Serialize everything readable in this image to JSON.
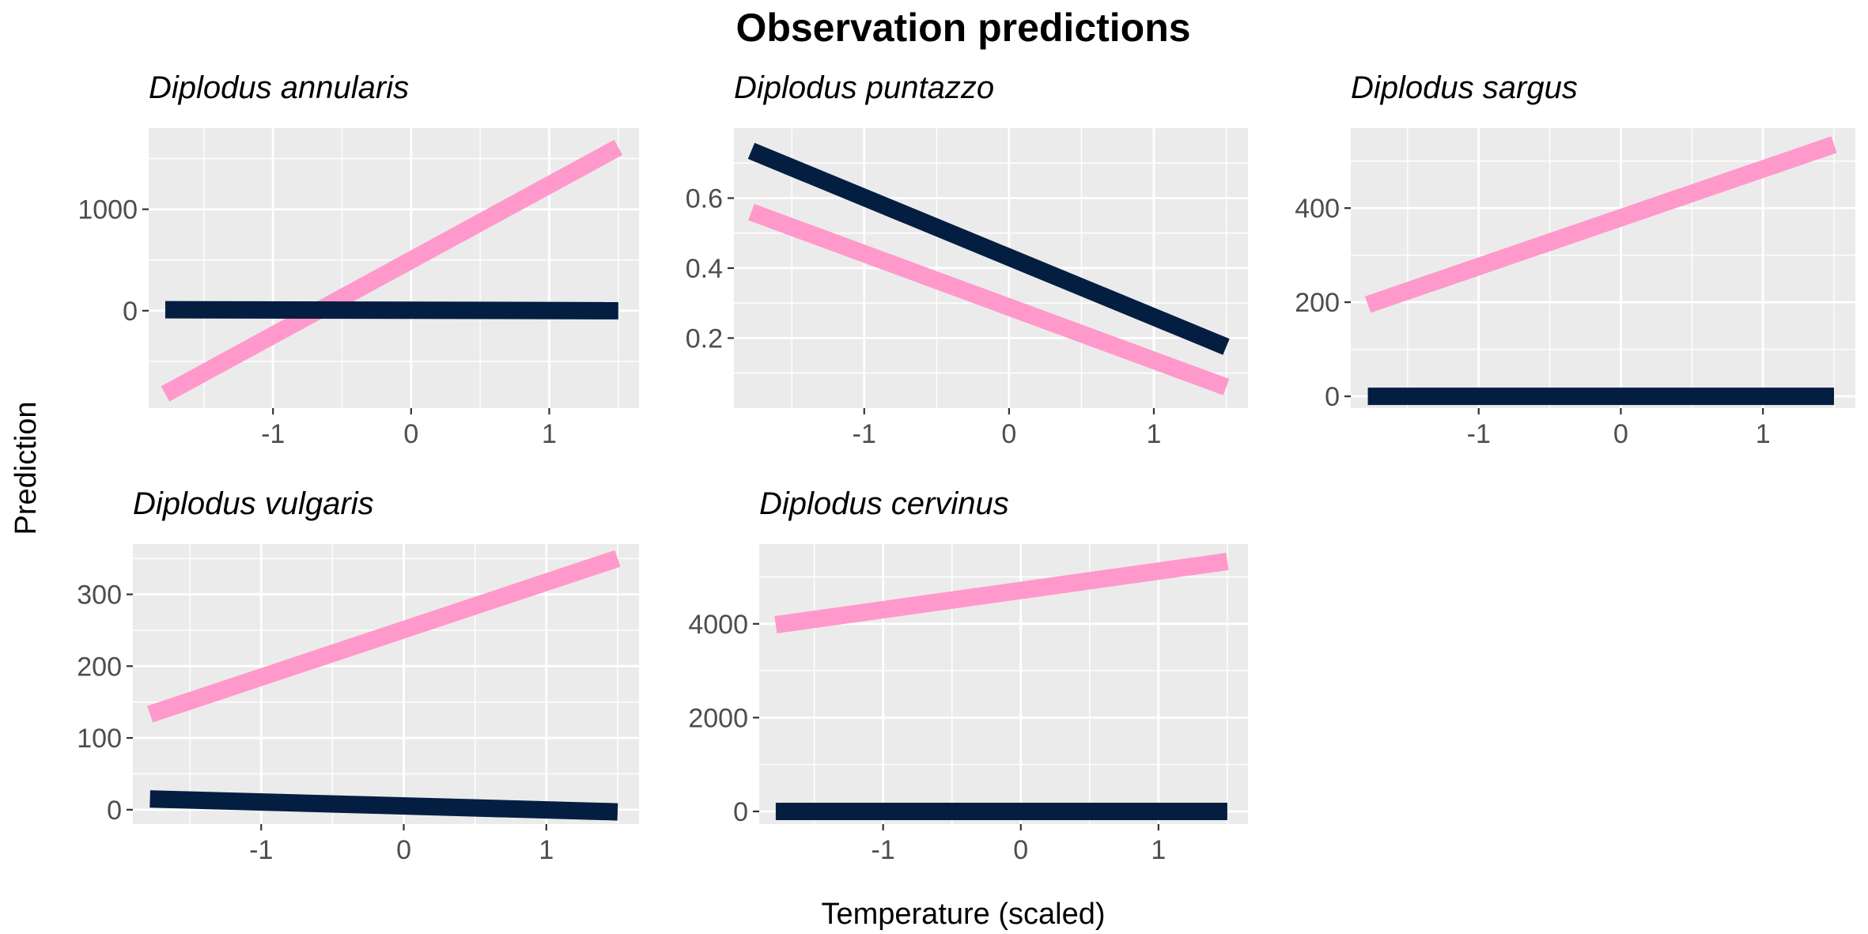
{
  "title": "Observation predictions",
  "xlabel": "Temperature (scaled)",
  "ylabel": "Prediction",
  "colors": {
    "panel_bg": "#ebebeb",
    "grid": "#ffffff",
    "series_pink": "#ff99cc",
    "series_navy": "#041e42",
    "tick_text": "#4d4d4d",
    "tick_mark": "#333333"
  },
  "chart_data": [
    {
      "type": "line",
      "title": "Diplodus annularis",
      "xlim": [
        -1.9,
        1.65
      ],
      "ylim": [
        -960,
        1800
      ],
      "x_ticks": [
        -1,
        0,
        1
      ],
      "x_tick_labels": [
        "-1",
        "0",
        "1"
      ],
      "y_ticks": [
        0,
        1000
      ],
      "y_tick_labels": [
        "0",
        "1000"
      ],
      "series": [
        {
          "color": "#ff99cc",
          "x": [
            -1.78,
            1.5
          ],
          "y": [
            -820,
            1610
          ]
        },
        {
          "color": "#041e42",
          "x": [
            -1.78,
            1.5
          ],
          "y": [
            10,
            0
          ]
        }
      ]
    },
    {
      "type": "line",
      "title": "Diplodus puntazzo",
      "xlim": [
        -1.9,
        1.65
      ],
      "ylim": [
        0.0,
        0.8
      ],
      "x_ticks": [
        -1,
        0,
        1
      ],
      "x_tick_labels": [
        "-1",
        "0",
        "1"
      ],
      "y_ticks": [
        0.2,
        0.4,
        0.6
      ],
      "y_tick_labels": [
        "0.2",
        "0.4",
        "0.6"
      ],
      "series": [
        {
          "color": "#041e42",
          "x": [
            -1.78,
            1.5
          ],
          "y": [
            0.735,
            0.175
          ]
        },
        {
          "color": "#ff99cc",
          "x": [
            -1.78,
            1.5
          ],
          "y": [
            0.56,
            0.06
          ]
        }
      ]
    },
    {
      "type": "line",
      "title": "Diplodus sargus",
      "xlim": [
        -1.9,
        1.65
      ],
      "ylim": [
        -25,
        570
      ],
      "x_ticks": [
        -1,
        0,
        1
      ],
      "x_tick_labels": [
        "-1",
        "0",
        "1"
      ],
      "y_ticks": [
        0,
        200,
        400
      ],
      "y_tick_labels": [
        "0",
        "200",
        "400"
      ],
      "series": [
        {
          "color": "#ff99cc",
          "x": [
            -1.78,
            1.5
          ],
          "y": [
            195,
            535
          ]
        },
        {
          "color": "#041e42",
          "x": [
            -1.78,
            1.5
          ],
          "y": [
            0,
            0
          ]
        }
      ]
    },
    {
      "type": "line",
      "title": "Diplodus vulgaris",
      "xlim": [
        -1.9,
        1.65
      ],
      "ylim": [
        -20,
        370
      ],
      "x_ticks": [
        -1,
        0,
        1
      ],
      "x_tick_labels": [
        "-1",
        "0",
        "1"
      ],
      "y_ticks": [
        0,
        100,
        200,
        300
      ],
      "y_tick_labels": [
        "0",
        "100",
        "200",
        "300"
      ],
      "series": [
        {
          "color": "#ff99cc",
          "x": [
            -1.78,
            1.5
          ],
          "y": [
            133,
            350
          ]
        },
        {
          "color": "#041e42",
          "x": [
            -1.78,
            1.5
          ],
          "y": [
            15,
            -3
          ]
        }
      ]
    },
    {
      "type": "line",
      "title": "Diplodus cervinus",
      "xlim": [
        -1.9,
        1.65
      ],
      "ylim": [
        -270,
        5700
      ],
      "x_ticks": [
        -1,
        0,
        1
      ],
      "x_tick_labels": [
        "-1",
        "0",
        "1"
      ],
      "y_ticks": [
        0,
        2000,
        4000
      ],
      "y_tick_labels": [
        "0",
        "2000",
        "4000"
      ],
      "series": [
        {
          "color": "#ff99cc",
          "x": [
            -1.78,
            1.5
          ],
          "y": [
            3980,
            5330
          ]
        },
        {
          "color": "#041e42",
          "x": [
            -1.78,
            1.5
          ],
          "y": [
            0,
            0
          ]
        }
      ]
    }
  ]
}
